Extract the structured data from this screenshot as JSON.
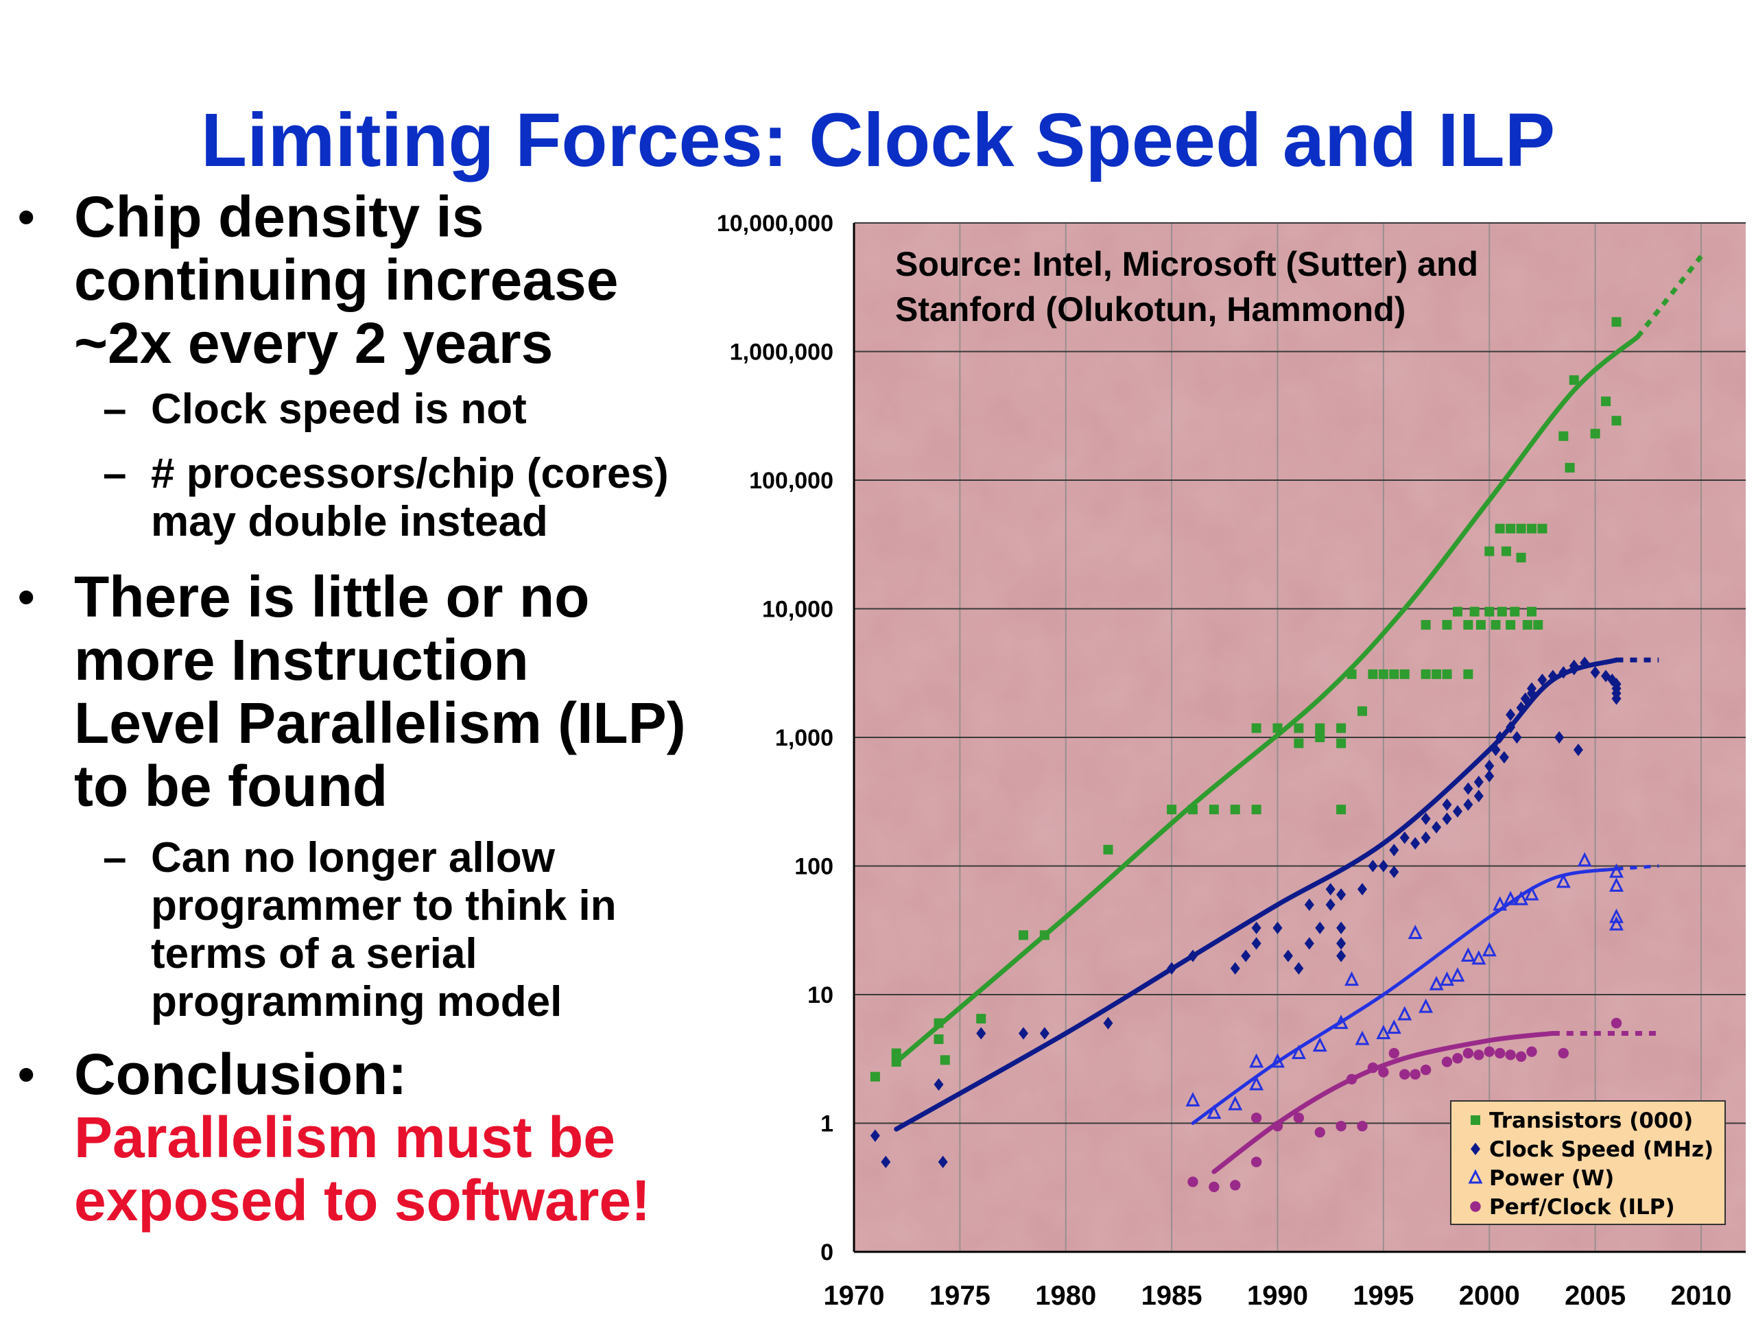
{
  "slide": {
    "title": "Limiting Forces: Clock Speed and ILP",
    "bullets": [
      {
        "text": "Chip density is continuing increase ~2x every 2 years",
        "lines": [
          "Chip density is",
          "continuing increase",
          "~2x every 2 years"
        ],
        "subs": [
          {
            "lines": [
              "Clock speed is not"
            ]
          },
          {
            "lines": [
              "# processors/chip (cores)",
              "may double instead"
            ]
          }
        ]
      },
      {
        "text": "There is little or no more Instruction Level Parallelism (ILP) to be found",
        "lines": [
          "There is little or no",
          "more Instruction",
          "Level Parallelism (ILP)",
          "to be found"
        ],
        "subs": [
          {
            "lines": [
              "Can no longer allow",
              "programmer to think in",
              "terms of a serial",
              "programming model"
            ]
          }
        ]
      },
      {
        "lines": [
          "Conclusion:"
        ],
        "emphasis_lines": [
          "Parallelism must be",
          "exposed to software!"
        ]
      }
    ],
    "colors": {
      "title": "#0b2fc4",
      "emphasis": "#e8112d",
      "plot_bg": "#d9a9ad"
    }
  },
  "chart_data": {
    "type": "scatter",
    "annotation": [
      "Source: Intel, Microsoft (Sutter) and",
      "Stanford (Olukotun, Hammond)"
    ],
    "y_scale": "log",
    "ylim": [
      0.1,
      10000000
    ],
    "xlim": [
      1970,
      2012
    ],
    "x_ticks": [
      1970,
      1975,
      1980,
      1985,
      1990,
      1995,
      2000,
      2005,
      2010
    ],
    "y_ticks": [
      {
        "value": 10000000,
        "label": "10,000,000"
      },
      {
        "value": 1000000,
        "label": "1,000,000"
      },
      {
        "value": 100000,
        "label": "100,000"
      },
      {
        "value": 10000,
        "label": "10,000"
      },
      {
        "value": 1000,
        "label": "1,000"
      },
      {
        "value": 100,
        "label": "100"
      },
      {
        "value": 10,
        "label": "10"
      },
      {
        "value": 1,
        "label": "1"
      },
      {
        "value": 0.1,
        "label": "0"
      }
    ],
    "grid": true,
    "legend_position": "bottom-right",
    "series": [
      {
        "name": "Transistors (000)",
        "marker": "square",
        "color": "#2e9c2e",
        "points": [
          [
            1971,
            2.3
          ],
          [
            1972,
            3.5
          ],
          [
            1972,
            3
          ],
          [
            1974,
            4.5
          ],
          [
            1974,
            6
          ],
          [
            1974.3,
            3.1
          ],
          [
            1976,
            6.5
          ],
          [
            1978,
            29
          ],
          [
            1979,
            29
          ],
          [
            1982,
            134
          ],
          [
            1985,
            275
          ],
          [
            1986,
            275
          ],
          [
            1987,
            275
          ],
          [
            1988,
            275
          ],
          [
            1989,
            275
          ],
          [
            1989,
            1180
          ],
          [
            1990,
            1180
          ],
          [
            1991,
            1180
          ],
          [
            1991,
            900
          ],
          [
            1992,
            1000
          ],
          [
            1992,
            1180
          ],
          [
            1993,
            1180
          ],
          [
            1993,
            900
          ],
          [
            1993,
            275
          ],
          [
            1993.5,
            3100
          ],
          [
            1994,
            1600
          ],
          [
            1994.5,
            3100
          ],
          [
            1995,
            3100
          ],
          [
            1995.5,
            3100
          ],
          [
            1996,
            3100
          ],
          [
            1997,
            7500
          ],
          [
            1997,
            3100
          ],
          [
            1997.5,
            3100
          ],
          [
            1998,
            3100
          ],
          [
            1998,
            7500
          ],
          [
            1998.5,
            9500
          ],
          [
            1999,
            3100
          ],
          [
            1999,
            7500
          ],
          [
            1999.3,
            9500
          ],
          [
            1999.6,
            7500
          ],
          [
            2000,
            9500
          ],
          [
            2000,
            28000
          ],
          [
            2000.3,
            7500
          ],
          [
            2000.5,
            42000
          ],
          [
            2000.6,
            9500
          ],
          [
            2000.8,
            28000
          ],
          [
            2001,
            42000
          ],
          [
            2001,
            7500
          ],
          [
            2001.2,
            9500
          ],
          [
            2001.5,
            42000
          ],
          [
            2001.5,
            25000
          ],
          [
            2001.8,
            7500
          ],
          [
            2002,
            42000
          ],
          [
            2002,
            9500
          ],
          [
            2002.3,
            7500
          ],
          [
            2002.5,
            42000
          ],
          [
            2003.5,
            220000
          ],
          [
            2003.8,
            125000
          ],
          [
            2004,
            600000
          ],
          [
            2005,
            230000
          ],
          [
            2005.5,
            410000
          ],
          [
            2006,
            290000
          ],
          [
            2006,
            1700000
          ]
        ],
        "trend": [
          [
            1972,
            3
          ],
          [
            1980,
            40
          ],
          [
            1986,
            300
          ],
          [
            1992,
            2000
          ],
          [
            1996,
            10000
          ],
          [
            2000,
            70000
          ],
          [
            2004,
            500000
          ],
          [
            2007,
            1300000
          ]
        ],
        "trend_projection": [
          [
            2007,
            1300000
          ],
          [
            2010,
            5500000
          ]
        ]
      },
      {
        "name": "Clock Speed (MHz)",
        "marker": "diamond",
        "color": "#0d1a8a",
        "points": [
          [
            1971,
            0.8
          ],
          [
            1971.5,
            0.5
          ],
          [
            1974,
            2
          ],
          [
            1974.2,
            0.5
          ],
          [
            1976,
            5
          ],
          [
            1978,
            5
          ],
          [
            1979,
            5
          ],
          [
            1982,
            6
          ],
          [
            1985,
            16
          ],
          [
            1986,
            20
          ],
          [
            1988,
            16
          ],
          [
            1988.5,
            20
          ],
          [
            1989,
            25
          ],
          [
            1989,
            33
          ],
          [
            1990,
            33
          ],
          [
            1990.5,
            20
          ],
          [
            1991,
            16
          ],
          [
            1991.5,
            25
          ],
          [
            1991.5,
            50
          ],
          [
            1992,
            33
          ],
          [
            1992.5,
            50
          ],
          [
            1992.5,
            66
          ],
          [
            1993,
            25
          ],
          [
            1993,
            33
          ],
          [
            1993,
            20
          ],
          [
            1993,
            60
          ],
          [
            1994,
            66
          ],
          [
            1994.5,
            100
          ],
          [
            1995,
            100
          ],
          [
            1995.5,
            90
          ],
          [
            1995.5,
            133
          ],
          [
            1996,
            166
          ],
          [
            1996.5,
            150
          ],
          [
            1997,
            166
          ],
          [
            1997,
            233
          ],
          [
            1997.5,
            200
          ],
          [
            1998,
            233
          ],
          [
            1998,
            300
          ],
          [
            1998.5,
            266
          ],
          [
            1999,
            300
          ],
          [
            1999,
            400
          ],
          [
            1999.5,
            450
          ],
          [
            1999.5,
            350
          ],
          [
            2000,
            500
          ],
          [
            2000,
            600
          ],
          [
            2000.3,
            800
          ],
          [
            2000.5,
            1000
          ],
          [
            2000.7,
            700
          ],
          [
            2001,
            1200
          ],
          [
            2001,
            1500
          ],
          [
            2001.3,
            1000
          ],
          [
            2001.5,
            1700
          ],
          [
            2001.7,
            2000
          ],
          [
            2002,
            2200
          ],
          [
            2002,
            2400
          ],
          [
            2002.5,
            2800
          ],
          [
            2003,
            3000
          ],
          [
            2003.5,
            3200
          ],
          [
            2004,
            3400
          ],
          [
            2004,
            3600
          ],
          [
            2004.5,
            3800
          ],
          [
            2005,
            3200
          ],
          [
            2005.5,
            3000
          ],
          [
            2005.8,
            2800
          ],
          [
            2006,
            2600
          ],
          [
            2006,
            2400
          ],
          [
            2006,
            2200
          ],
          [
            2006,
            2000
          ],
          [
            2003.3,
            1000
          ],
          [
            2004.2,
            800
          ]
        ],
        "trend": [
          [
            1972,
            0.9
          ],
          [
            1980,
            5
          ],
          [
            1986,
            20
          ],
          [
            1990,
            50
          ],
          [
            1995,
            150
          ],
          [
            2000,
            800
          ],
          [
            2003,
            2800
          ],
          [
            2006,
            4000
          ]
        ],
        "trend_projection": [
          [
            2006,
            4000
          ],
          [
            2008,
            4000
          ]
        ]
      },
      {
        "name": "Power (W)",
        "marker": "triangle",
        "color": "#2432e0",
        "points": [
          [
            1986,
            1.5
          ],
          [
            1987,
            1.2
          ],
          [
            1988,
            1.4
          ],
          [
            1989,
            2
          ],
          [
            1989,
            3
          ],
          [
            1990,
            3
          ],
          [
            1991,
            3.5
          ],
          [
            1992,
            4
          ],
          [
            1993,
            6
          ],
          [
            1993.5,
            13
          ],
          [
            1994,
            4.5
          ],
          [
            1995,
            5
          ],
          [
            1995.5,
            5.5
          ],
          [
            1996,
            7
          ],
          [
            1996.5,
            30
          ],
          [
            1997,
            8
          ],
          [
            1997.5,
            12
          ],
          [
            1998,
            13
          ],
          [
            1998.5,
            14
          ],
          [
            1999,
            20
          ],
          [
            1999.5,
            19
          ],
          [
            2000,
            22
          ],
          [
            2000.5,
            50
          ],
          [
            2001,
            55
          ],
          [
            2001.5,
            55
          ],
          [
            2002,
            60
          ],
          [
            2003.5,
            75
          ],
          [
            2004.5,
            110
          ],
          [
            2006,
            90
          ],
          [
            2006,
            70
          ],
          [
            2006,
            40
          ],
          [
            2006,
            35
          ]
        ],
        "trend": [
          [
            1986,
            1
          ],
          [
            1990,
            3
          ],
          [
            1995,
            10
          ],
          [
            2000,
            40
          ],
          [
            2003,
            80
          ],
          [
            2006,
            95
          ]
        ],
        "trend_projection": [
          [
            2006,
            95
          ],
          [
            2008,
            100
          ]
        ]
      },
      {
        "name": "Perf/Clock (ILP)",
        "marker": "circle",
        "color": "#9a2a8a",
        "points": [
          [
            1986,
            0.35
          ],
          [
            1987,
            0.32
          ],
          [
            1988,
            0.33
          ],
          [
            1989,
            0.5
          ],
          [
            1989,
            1.1
          ],
          [
            1990,
            0.95
          ],
          [
            1991,
            1.1
          ],
          [
            1992,
            0.85
          ],
          [
            1993,
            0.95
          ],
          [
            1993.5,
            2.2
          ],
          [
            1994,
            0.95
          ],
          [
            1994.5,
            2.7
          ],
          [
            1995,
            2.5
          ],
          [
            1995.5,
            3.5
          ],
          [
            1996,
            2.4
          ],
          [
            1996.5,
            2.4
          ],
          [
            1997,
            2.6
          ],
          [
            1998,
            3
          ],
          [
            1998.5,
            3.2
          ],
          [
            1999,
            3.5
          ],
          [
            1999.5,
            3.4
          ],
          [
            2000,
            3.6
          ],
          [
            2000.5,
            3.5
          ],
          [
            2001,
            3.4
          ],
          [
            2001.5,
            3.3
          ],
          [
            2002,
            3.6
          ],
          [
            2003.5,
            3.5
          ],
          [
            2006,
            6
          ]
        ],
        "trend": [
          [
            1987,
            0.42
          ],
          [
            1990,
            1
          ],
          [
            1993,
            2
          ],
          [
            1996,
            3.2
          ],
          [
            2000,
            4.4
          ],
          [
            2003,
            5
          ]
        ],
        "trend_projection": [
          [
            2003,
            5
          ],
          [
            2008,
            5
          ]
        ]
      }
    ]
  }
}
